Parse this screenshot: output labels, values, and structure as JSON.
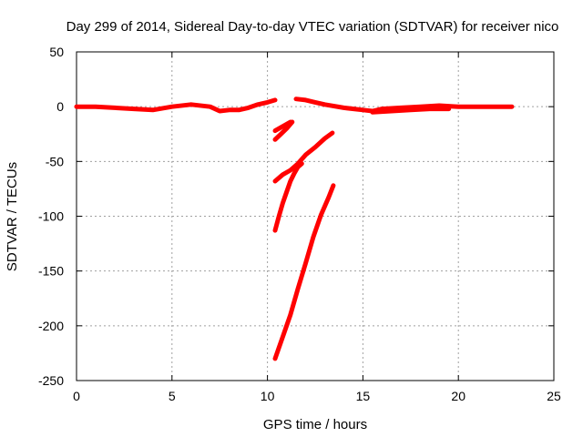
{
  "chart_data": {
    "type": "line",
    "title": "Day 299 of 2014, Sidereal Day-to-day VTEC variation (SDTVAR) for receiver nico",
    "xlabel": "GPS time / hours",
    "ylabel": "SDTVAR / TECUs",
    "xlim": [
      0,
      25
    ],
    "ylim": [
      -250,
      50
    ],
    "xticks": [
      0,
      5,
      10,
      15,
      20,
      25
    ],
    "yticks": [
      -250,
      -200,
      -150,
      -100,
      -50,
      0,
      50
    ],
    "grid": true,
    "legend": "none",
    "color": "#ff0000",
    "series": [
      {
        "x": [
          0,
          1,
          2,
          3,
          4,
          5,
          6,
          7,
          7.5,
          8,
          8.5,
          9,
          9.5,
          10,
          10.4
        ],
        "y": [
          0,
          0,
          -1,
          -2,
          -3,
          0,
          2,
          0,
          -4,
          -3,
          -3,
          -1,
          2,
          4,
          6
        ]
      },
      {
        "x": [
          11.5,
          12,
          12.5,
          13,
          14,
          15,
          15.5,
          16,
          17,
          18,
          19,
          20,
          21,
          22,
          22.8
        ],
        "y": [
          7,
          6,
          4,
          2,
          -1,
          -3,
          -4,
          -2,
          -1,
          0,
          1,
          0,
          0,
          0,
          0
        ]
      },
      {
        "x": [
          15.5,
          16.5,
          17.5,
          18.5,
          19.5
        ],
        "y": [
          -5,
          -4,
          -3,
          -2,
          -2
        ]
      },
      {
        "x": [
          10.4,
          10.7,
          11.0,
          11.3
        ],
        "y": [
          -30,
          -25,
          -20,
          -14
        ]
      },
      {
        "x": [
          10.4,
          10.8,
          11.2
        ],
        "y": [
          -22,
          -18,
          -14
        ]
      },
      {
        "x": [
          10.4,
          10.8,
          11.2,
          11.6,
          12.0,
          12.5,
          13.0,
          13.4
        ],
        "y": [
          -68,
          -62,
          -58,
          -52,
          -44,
          -37,
          -29,
          -24
        ]
      },
      {
        "x": [
          10.4,
          10.6,
          10.8,
          11.0,
          11.2,
          11.4,
          11.6,
          11.8
        ],
        "y": [
          -113,
          -100,
          -88,
          -78,
          -68,
          -61,
          -55,
          -52
        ]
      },
      {
        "x": [
          10.4,
          10.8,
          11.2,
          11.6,
          12.0,
          12.4,
          12.8,
          13.2,
          13.45
        ],
        "y": [
          -230,
          -210,
          -190,
          -166,
          -143,
          -119,
          -99,
          -83,
          -72
        ]
      }
    ]
  }
}
